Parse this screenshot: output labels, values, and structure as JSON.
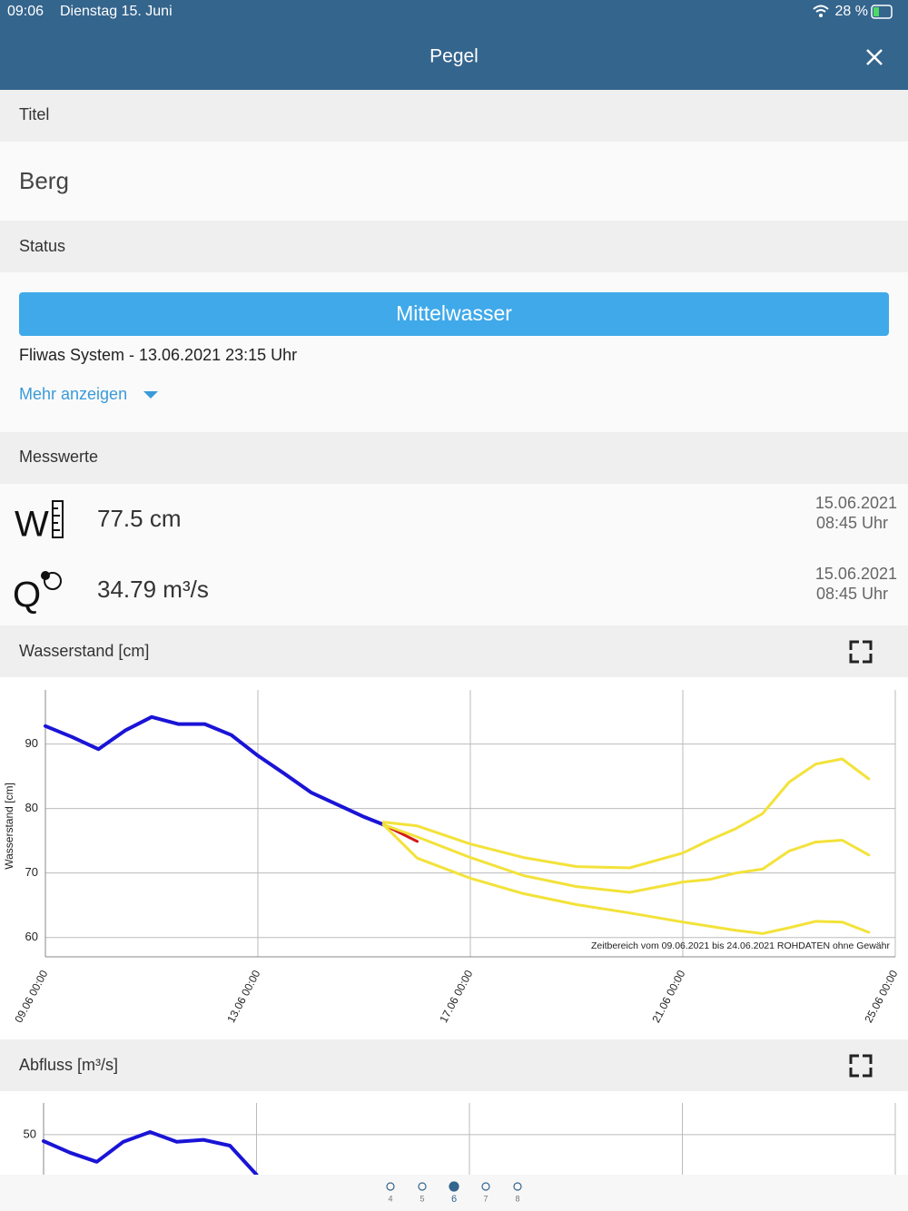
{
  "status_bar": {
    "time": "09:06",
    "date": "Dienstag 15. Juni",
    "battery": "28 %"
  },
  "header": {
    "title": "Pegel"
  },
  "title_section": {
    "label": "Titel",
    "value": "Berg"
  },
  "status_section": {
    "label": "Status",
    "button": "Mittelwasser",
    "source": "Fliwas System - 13.06.2021 23:15 Uhr",
    "more": "Mehr anzeigen"
  },
  "measurements": {
    "label": "Messwerte",
    "rows": [
      {
        "icon": "W",
        "value": "77.5 cm",
        "date": "15.06.2021",
        "time": "08:45 Uhr"
      },
      {
        "icon": "Q",
        "value": "34.79 m³/s",
        "date": "15.06.2021",
        "time": "08:45 Uhr"
      }
    ]
  },
  "chart_data": [
    {
      "type": "line",
      "title": "Wasserstand [cm]",
      "y_label": "Wasserstand [cm]",
      "annotation": "Zeitbereich vom 09.06.2021 bis 24.06.2021  ROHDATEN ohne Gewähr",
      "xlim": [
        "09.06 00:00",
        "25.06 00:00"
      ],
      "xticks": [
        "09.06 00:00",
        "13.06 00:00",
        "17.06 00:00",
        "21.06 00:00",
        "25.06 00:00"
      ],
      "ylim": [
        57,
        98.4
      ],
      "yticks": [
        60,
        70,
        80,
        90
      ],
      "grid": true,
      "series": [
        {
          "color": "#1a14d6",
          "x": [
            "09.06 00:00",
            "09.06 12:00",
            "10.06 00:00",
            "10.06 12:00",
            "11.06 00:00",
            "11.06 12:00",
            "12.06 00:00",
            "12.06 12:00",
            "13.06 00:00",
            "13.06 12:00",
            "14.06 00:00",
            "14.06 12:00",
            "15.06 00:00",
            "15.06 08:45"
          ],
          "values": [
            92.8,
            91.1,
            89.2,
            92.1,
            94.2,
            93.1,
            93.1,
            91.4,
            88.2,
            85.4,
            82.5,
            80.6,
            78.7,
            77.5
          ]
        },
        {
          "color": "#d41a1a",
          "x": [
            "15.06 08:45",
            "16.06 00:00"
          ],
          "values": [
            77.5,
            74.9
          ]
        },
        {
          "color": "#f3e23a",
          "x": [
            "15.06 08:45",
            "16.06 00:00",
            "17.06 00:00",
            "18.06 00:00",
            "19.06 00:00",
            "20.06 00:00",
            "21.06 00:00",
            "21.06 12:00",
            "22.06 00:00",
            "22.06 12:00",
            "23.06 00:00",
            "23.06 12:00",
            "24.06 00:00",
            "24.06 12:00"
          ],
          "values": [
            77.9,
            77.3,
            74.5,
            72.4,
            71.0,
            70.8,
            73.1,
            75.1,
            76.9,
            79.2,
            84.1,
            86.9,
            87.7,
            84.6
          ]
        },
        {
          "color": "#f3e23a",
          "x": [
            "15.06 08:45",
            "16.06 00:00",
            "17.06 00:00",
            "18.06 00:00",
            "19.06 00:00",
            "20.06 00:00",
            "21.06 00:00",
            "21.06 12:00",
            "22.06 00:00",
            "22.06 12:00",
            "23.06 00:00",
            "23.06 12:00",
            "24.06 00:00",
            "24.06 12:00"
          ],
          "values": [
            77.5,
            75.6,
            72.4,
            69.6,
            67.9,
            67.0,
            68.6,
            69.0,
            70.0,
            70.6,
            73.4,
            74.8,
            75.1,
            72.8
          ]
        },
        {
          "color": "#f3e23a",
          "x": [
            "15.06 08:45",
            "16.06 00:00",
            "17.06 00:00",
            "18.06 00:00",
            "19.06 00:00",
            "20.06 00:00",
            "21.06 00:00",
            "22.06 00:00",
            "22.06 12:00",
            "23.06 00:00",
            "23.06 12:00",
            "24.06 00:00",
            "24.06 12:00"
          ],
          "values": [
            77.5,
            72.3,
            69.2,
            66.8,
            65.1,
            63.8,
            62.4,
            61.1,
            60.6,
            61.5,
            62.5,
            62.4,
            60.8
          ]
        }
      ]
    },
    {
      "type": "line",
      "title": "Abfluss [m³/s]",
      "xlim": [
        "09.06 00:00",
        "25.06 00:00"
      ],
      "ylim": [
        43.8,
        54.9
      ],
      "yticks": [
        50
      ],
      "grid": true,
      "series": [
        {
          "color": "#1a14d6",
          "x": [
            "09.06 00:00",
            "09.06 12:00",
            "10.06 00:00",
            "10.06 12:00",
            "11.06 00:00",
            "11.06 12:00",
            "12.06 00:00",
            "12.06 12:00",
            "13.06 00:00"
          ],
          "values": [
            49.0,
            47.2,
            45.8,
            48.9,
            50.4,
            48.9,
            49.2,
            48.3,
            43.8
          ]
        }
      ]
    }
  ],
  "pagination": {
    "pages": [
      4,
      5,
      6,
      7,
      8
    ],
    "current": 6
  }
}
